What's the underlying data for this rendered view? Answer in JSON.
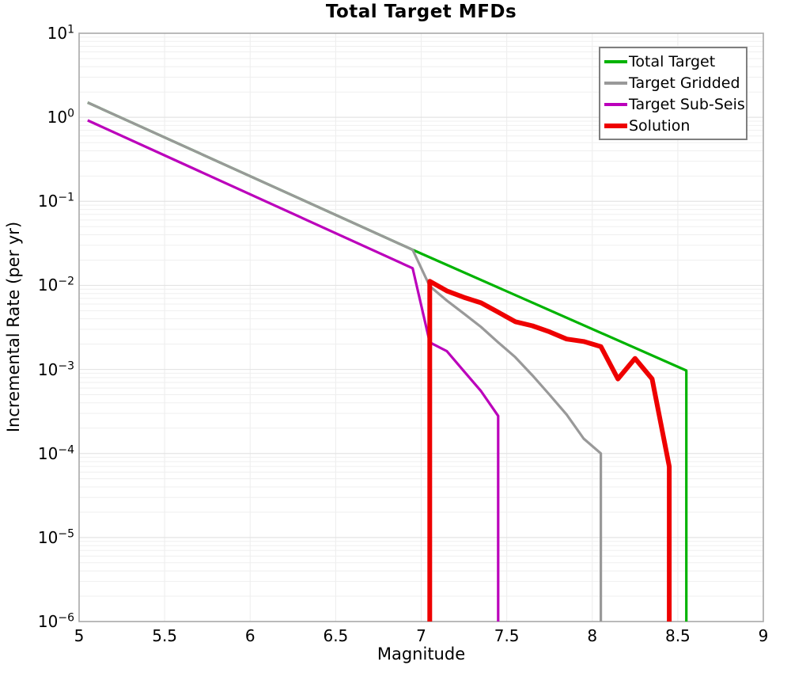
{
  "chart_data": {
    "type": "line",
    "title": "Total Target MFDs",
    "xlabel": "Magnitude",
    "ylabel": "Incremental Rate (per yr)",
    "x_axis": {
      "min": 5,
      "max": 9,
      "tick_labels": [
        "5",
        "5.5",
        "6",
        "6.5",
        "7",
        "7.5",
        "8",
        "8.5",
        "9"
      ],
      "tick_values": [
        5,
        5.5,
        6,
        6.5,
        7,
        7.5,
        8,
        8.5,
        9
      ]
    },
    "y_axis": {
      "scale": "log",
      "min_exponent": -6,
      "max_exponent": 1,
      "tick_exponents": [
        1,
        0,
        -1,
        -2,
        -3,
        -4,
        -5,
        -6
      ]
    },
    "grid": {
      "shown": true,
      "minor_color": "#efefef",
      "major_color": "#e4e4e4",
      "frame_color": "#a9a9a9"
    },
    "legend_position": "top-right",
    "series": [
      {
        "name": "Total Target",
        "color": "#00b300",
        "width": 3.2,
        "points": [
          [
            5.05,
            1.5
          ],
          [
            6.95,
            0.0265
          ],
          [
            8.55,
            0.00097
          ],
          [
            8.55,
            1e-06
          ]
        ]
      },
      {
        "name": "Target Gridded",
        "color": "#999999",
        "width": 3.2,
        "points": [
          [
            5.05,
            1.5
          ],
          [
            6.95,
            0.0265
          ],
          [
            7.05,
            0.0098
          ],
          [
            7.15,
            0.0066
          ],
          [
            7.25,
            0.0046
          ],
          [
            7.35,
            0.0032
          ],
          [
            7.45,
            0.0021
          ],
          [
            7.55,
            0.0014
          ],
          [
            7.65,
            0.00085
          ],
          [
            7.75,
            0.0005
          ],
          [
            7.85,
            0.00029
          ],
          [
            7.95,
            0.00015
          ],
          [
            8.05,
            0.0001
          ],
          [
            8.05,
            1e-06
          ]
        ]
      },
      {
        "name": "Target Sub-Seis",
        "color": "#bb00bb",
        "width": 3.2,
        "points": [
          [
            5.05,
            0.92
          ],
          [
            6.95,
            0.016
          ],
          [
            7.05,
            0.0021
          ],
          [
            7.15,
            0.00165
          ],
          [
            7.25,
            0.00095
          ],
          [
            7.35,
            0.00055
          ],
          [
            7.45,
            0.00028
          ],
          [
            7.45,
            1e-06
          ]
        ]
      },
      {
        "name": "Solution",
        "color": "#ee0000",
        "width": 6,
        "points": [
          [
            7.05,
            1e-06
          ],
          [
            7.05,
            0.0112
          ],
          [
            7.15,
            0.0086
          ],
          [
            7.25,
            0.0072
          ],
          [
            7.35,
            0.0062
          ],
          [
            7.45,
            0.0048
          ],
          [
            7.55,
            0.0037
          ],
          [
            7.65,
            0.0033
          ],
          [
            7.75,
            0.0028
          ],
          [
            7.85,
            0.0023
          ],
          [
            7.95,
            0.00215
          ],
          [
            8.05,
            0.00187
          ],
          [
            8.15,
            0.00077
          ],
          [
            8.25,
            0.00135
          ],
          [
            8.35,
            0.00077
          ],
          [
            8.45,
            7e-05
          ],
          [
            8.45,
            1e-06
          ]
        ]
      }
    ]
  }
}
